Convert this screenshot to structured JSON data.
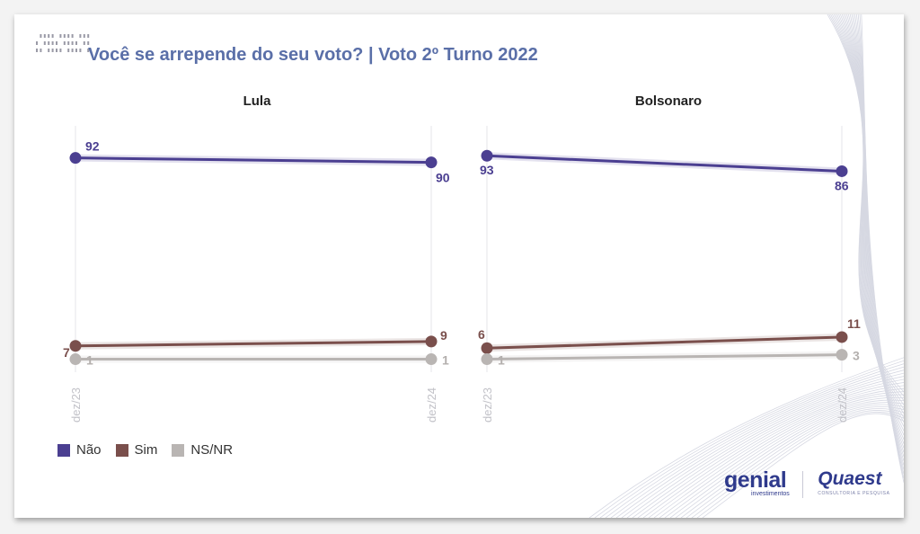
{
  "title": "Você se arrepende do seu voto? | Voto 2º Turno 2022",
  "legend": [
    {
      "label": "Não",
      "color": "#4b3f91"
    },
    {
      "label": "Sim",
      "color": "#7a4f4c"
    },
    {
      "label": "NS/NR",
      "color": "#b9b5b3"
    }
  ],
  "chart_data": [
    {
      "type": "line",
      "title": "Lula",
      "x": [
        "dez/23",
        "dez/24"
      ],
      "ylim": [
        0,
        100
      ],
      "series": [
        {
          "name": "Não",
          "values": [
            92,
            90
          ],
          "color": "#4b3f91"
        },
        {
          "name": "Sim",
          "values": [
            7,
            9
          ],
          "color": "#7a4f4c"
        },
        {
          "name": "NS/NR",
          "values": [
            1,
            1
          ],
          "color": "#b9b5b3"
        }
      ]
    },
    {
      "type": "line",
      "title": "Bolsonaro",
      "x": [
        "dez/23",
        "dez/24"
      ],
      "ylim": [
        0,
        100
      ],
      "series": [
        {
          "name": "Não",
          "values": [
            93,
            86
          ],
          "color": "#4b3f91"
        },
        {
          "name": "Sim",
          "values": [
            6,
            11
          ],
          "color": "#7a4f4c"
        },
        {
          "name": "NS/NR",
          "values": [
            1,
            3
          ],
          "color": "#b9b5b3"
        }
      ]
    }
  ],
  "brands": {
    "genial": "genial",
    "genial_sub": "investimentos",
    "quaest": "Quaest",
    "quaest_sub": "CONSULTORIA E PESQUISA"
  }
}
